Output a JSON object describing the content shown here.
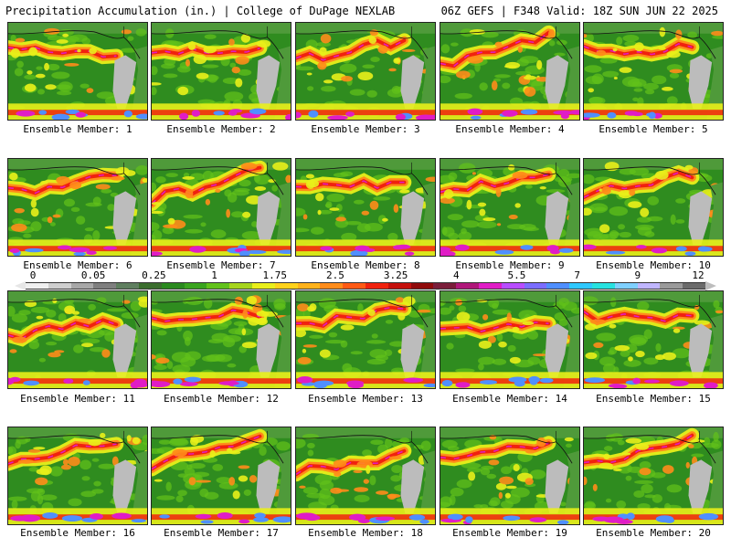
{
  "header": {
    "left": "Precipitation Accumulation (in.) | College of DuPage NEXLAB",
    "right": "06Z GEFS | F348 Valid: 18Z SUN JUN 22 2025"
  },
  "scale": {
    "labels": [
      "0",
      "0.05",
      "0.25",
      "1",
      "1.75",
      "2.5",
      "3.25",
      "4",
      "5.5",
      "7",
      "9",
      "12"
    ],
    "colors": [
      "#f0f0f0",
      "#cfcfcf",
      "#a8a8a8",
      "#7f7f7f",
      "#5f7f5f",
      "#3b6e2e",
      "#2a8a1e",
      "#3aa51e",
      "#62c21a",
      "#a6d51c",
      "#e9ef1a",
      "#ffd21a",
      "#ffb21a",
      "#ff8c1a",
      "#ff5a14",
      "#f0220e",
      "#c4100c",
      "#8f0a0a",
      "#7a1d3a",
      "#b0177a",
      "#e01cc6",
      "#b84dff",
      "#7b6dff",
      "#4f8fff",
      "#2ec8ff",
      "#27e2e0",
      "#7fd0ff",
      "#c0b6ff",
      "#9a9a9a",
      "#6b6b6b"
    ]
  },
  "members": [
    {
      "label": "Ensemble Member: 1"
    },
    {
      "label": "Ensemble Member: 2"
    },
    {
      "label": "Ensemble Member: 3"
    },
    {
      "label": "Ensemble Member: 4"
    },
    {
      "label": "Ensemble Member: 5"
    },
    {
      "label": "Ensemble Member: 6"
    },
    {
      "label": "Ensemble Member: 7"
    },
    {
      "label": "Ensemble Member: 8"
    },
    {
      "label": "Ensemble Member: 9"
    },
    {
      "label": "Ensemble Member: 10"
    },
    {
      "label": "Ensemble Member: 11"
    },
    {
      "label": "Ensemble Member: 12"
    },
    {
      "label": "Ensemble Member: 13"
    },
    {
      "label": "Ensemble Member: 14"
    },
    {
      "label": "Ensemble Member: 15"
    },
    {
      "label": "Ensemble Member: 16"
    },
    {
      "label": "Ensemble Member: 17"
    },
    {
      "label": "Ensemble Member: 18"
    },
    {
      "label": "Ensemble Member: 19"
    },
    {
      "label": "Ensemble Member: 20"
    }
  ],
  "colors": {
    "ocean": "#2f8c1f",
    "light_precip": "#62c21a",
    "moderate_precip": "#e9ef1a",
    "heavy_precip": "#ff8c1a",
    "very_heavy_precip": "#f0220e",
    "extreme_precip": "#e01cc6",
    "tropics": "#4f8fff",
    "dry_land": "#bcbcbc",
    "land_green": "#4f9a3a"
  }
}
